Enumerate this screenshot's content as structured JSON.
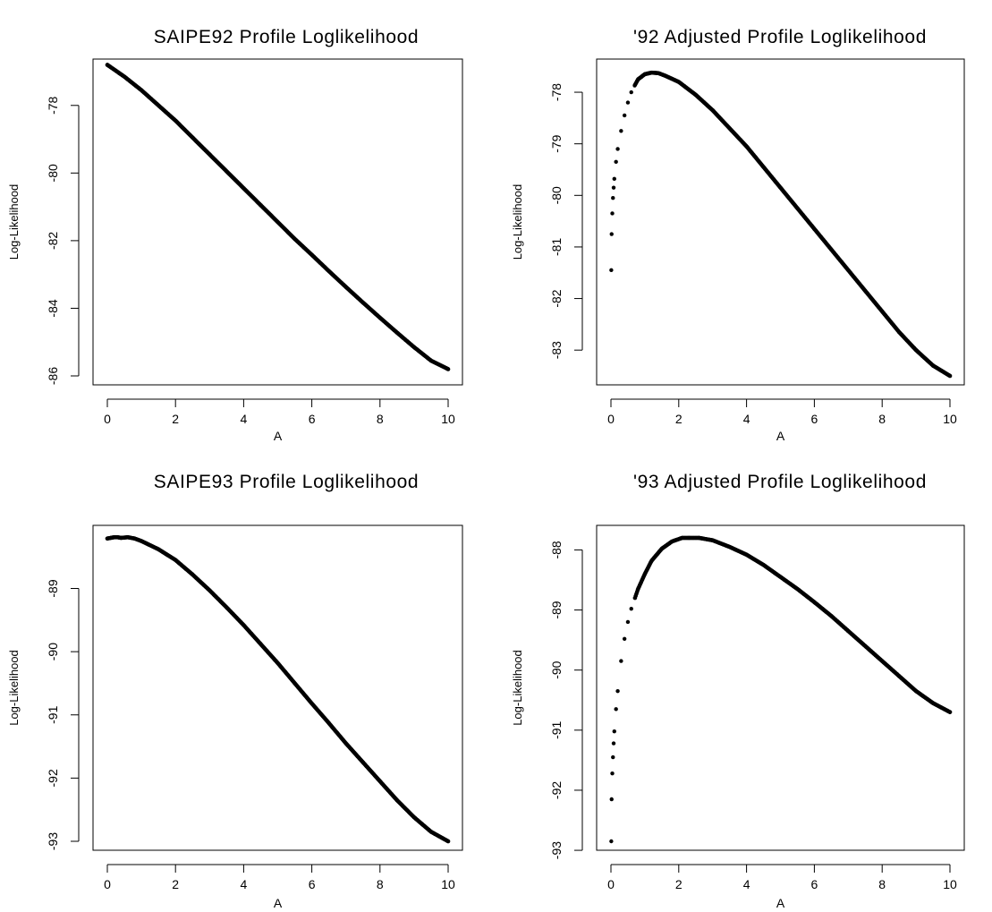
{
  "chart_data": [
    {
      "type": "scatter",
      "title": "SAIPE92 Profile  Loglikelihood",
      "xlabel": "A",
      "ylabel": "Log-Likelihood",
      "xlim": [
        0,
        10
      ],
      "ylim": [
        -86,
        -77
      ],
      "xticks": [
        "0",
        "2",
        "4",
        "6",
        "8",
        "10"
      ],
      "yticks": [
        "-78",
        "-80",
        "-82",
        "-84",
        "-86"
      ],
      "series": [
        {
          "points": [
            [
              0,
              -76.8
            ],
            [
              0.5,
              -77.15
            ],
            [
              1,
              -77.55
            ],
            [
              1.5,
              -78.0
            ],
            [
              2,
              -78.45
            ],
            [
              2.5,
              -78.95
            ],
            [
              3,
              -79.45
            ],
            [
              3.5,
              -79.95
            ],
            [
              4,
              -80.45
            ],
            [
              4.5,
              -80.95
            ],
            [
              5,
              -81.45
            ],
            [
              5.5,
              -81.95
            ],
            [
              6,
              -82.42
            ],
            [
              6.5,
              -82.9
            ],
            [
              7,
              -83.37
            ],
            [
              7.5,
              -83.83
            ],
            [
              8,
              -84.28
            ],
            [
              8.5,
              -84.72
            ],
            [
              9,
              -85.15
            ],
            [
              9.5,
              -85.55
            ],
            [
              10,
              -85.8
            ]
          ]
        }
      ]
    },
    {
      "type": "scatter",
      "title": "'92 Adjusted Profile Loglikelihood",
      "xlabel": "A",
      "ylabel": "Log-Likelihood",
      "xlim": [
        0,
        10
      ],
      "ylim": [
        -83.5,
        -77.6
      ],
      "xticks": [
        "0",
        "2",
        "4",
        "6",
        "8",
        "10"
      ],
      "yticks": [
        "-78",
        "-79",
        "-80",
        "-81",
        "-82",
        "-83"
      ],
      "series": [
        {
          "points": [
            [
              0.01,
              -81.45
            ],
            [
              0.02,
              -80.75
            ],
            [
              0.04,
              -80.35
            ],
            [
              0.06,
              -80.05
            ],
            [
              0.08,
              -79.85
            ],
            [
              0.1,
              -79.68
            ],
            [
              0.15,
              -79.35
            ],
            [
              0.2,
              -79.1
            ],
            [
              0.3,
              -78.75
            ],
            [
              0.4,
              -78.45
            ],
            [
              0.5,
              -78.2
            ],
            [
              0.6,
              -78.0
            ],
            [
              0.7,
              -77.87
            ],
            [
              0.8,
              -77.75
            ],
            [
              1.0,
              -77.65
            ],
            [
              1.2,
              -77.62
            ],
            [
              1.4,
              -77.63
            ],
            [
              1.6,
              -77.68
            ],
            [
              2,
              -77.8
            ],
            [
              2.5,
              -78.05
            ],
            [
              3,
              -78.35
            ],
            [
              3.5,
              -78.7
            ],
            [
              4,
              -79.05
            ],
            [
              4.5,
              -79.45
            ],
            [
              5,
              -79.85
            ],
            [
              5.5,
              -80.25
            ],
            [
              6,
              -80.65
            ],
            [
              6.5,
              -81.05
            ],
            [
              7,
              -81.45
            ],
            [
              7.5,
              -81.85
            ],
            [
              8,
              -82.25
            ],
            [
              8.5,
              -82.65
            ],
            [
              9,
              -83.0
            ],
            [
              9.5,
              -83.3
            ],
            [
              10,
              -83.5
            ]
          ]
        }
      ]
    },
    {
      "type": "scatter",
      "title": "SAIPE93 Profile  Loglikelihood",
      "xlabel": "A",
      "ylabel": "Log-Likelihood",
      "xlim": [
        0,
        10
      ],
      "ylim": [
        -93,
        -88.2
      ],
      "xticks": [
        "0",
        "2",
        "4",
        "6",
        "8",
        "10"
      ],
      "yticks": [
        "-89",
        "-90",
        "-91",
        "-92",
        "-93"
      ],
      "series": [
        {
          "points": [
            [
              0,
              -88.21
            ],
            [
              0.1,
              -88.2
            ],
            [
              0.2,
              -88.19
            ],
            [
              0.3,
              -88.19
            ],
            [
              0.4,
              -88.2
            ],
            [
              0.6,
              -88.19
            ],
            [
              0.8,
              -88.21
            ],
            [
              1,
              -88.25
            ],
            [
              1.5,
              -88.38
            ],
            [
              2,
              -88.55
            ],
            [
              2.5,
              -88.78
            ],
            [
              3,
              -89.03
            ],
            [
              3.5,
              -89.3
            ],
            [
              4,
              -89.58
            ],
            [
              4.5,
              -89.88
            ],
            [
              5,
              -90.18
            ],
            [
              5.5,
              -90.5
            ],
            [
              6,
              -90.82
            ],
            [
              6.5,
              -91.13
            ],
            [
              7,
              -91.45
            ],
            [
              7.5,
              -91.75
            ],
            [
              8,
              -92.05
            ],
            [
              8.5,
              -92.35
            ],
            [
              9,
              -92.62
            ],
            [
              9.5,
              -92.85
            ],
            [
              10,
              -93.0
            ]
          ]
        }
      ]
    },
    {
      "type": "scatter",
      "title": "'93 Adjusted Profile Loglikelihood",
      "xlabel": "A",
      "ylabel": "Log-Likelihood",
      "xlim": [
        0,
        10
      ],
      "ylim": [
        -92.85,
        -87.8
      ],
      "xticks": [
        "0",
        "2",
        "4",
        "6",
        "8",
        "10"
      ],
      "yticks": [
        "-88",
        "-89",
        "-90",
        "-91",
        "-92",
        "-93"
      ],
      "series": [
        {
          "points": [
            [
              0.01,
              -92.85
            ],
            [
              0.02,
              -92.15
            ],
            [
              0.04,
              -91.72
            ],
            [
              0.06,
              -91.45
            ],
            [
              0.08,
              -91.22
            ],
            [
              0.1,
              -91.02
            ],
            [
              0.15,
              -90.65
            ],
            [
              0.2,
              -90.35
            ],
            [
              0.3,
              -89.85
            ],
            [
              0.4,
              -89.48
            ],
            [
              0.5,
              -89.2
            ],
            [
              0.6,
              -88.98
            ],
            [
              0.8,
              -88.65
            ],
            [
              1.0,
              -88.4
            ],
            [
              1.2,
              -88.18
            ],
            [
              1.5,
              -87.98
            ],
            [
              1.8,
              -87.86
            ],
            [
              2.1,
              -87.8
            ],
            [
              2.3,
              -87.8
            ],
            [
              2.6,
              -87.8
            ],
            [
              3,
              -87.84
            ],
            [
              3.5,
              -87.95
            ],
            [
              4,
              -88.08
            ],
            [
              4.5,
              -88.25
            ],
            [
              5,
              -88.45
            ],
            [
              5.5,
              -88.65
            ],
            [
              6,
              -88.87
            ],
            [
              6.5,
              -89.1
            ],
            [
              7,
              -89.35
            ],
            [
              7.5,
              -89.6
            ],
            [
              8,
              -89.85
            ],
            [
              8.5,
              -90.1
            ],
            [
              9,
              -90.35
            ],
            [
              9.5,
              -90.55
            ],
            [
              10,
              -90.7
            ]
          ]
        }
      ]
    }
  ]
}
